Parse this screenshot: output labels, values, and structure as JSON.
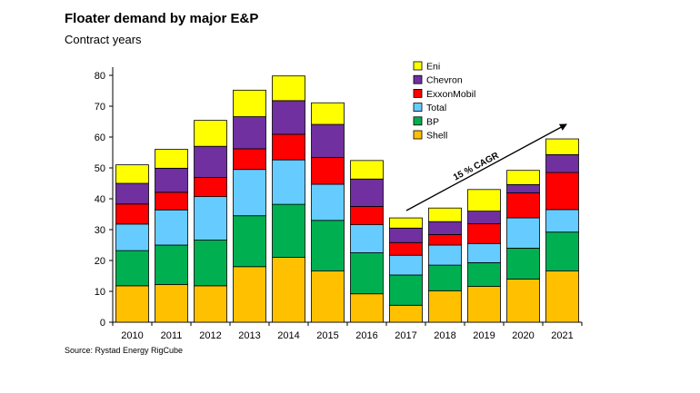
{
  "chart_data": {
    "type": "bar",
    "stacked": true,
    "title": "Floater demand by major E&P",
    "subtitle": "Contract years",
    "xlabel": "",
    "ylabel": "",
    "ylim": [
      0,
      85
    ],
    "yticks": [
      0,
      10,
      20,
      30,
      40,
      50,
      60,
      70,
      80
    ],
    "grid": false,
    "legend_position": "top-right",
    "categories": [
      "2010",
      "2011",
      "2012",
      "2013",
      "2014",
      "2015",
      "2016",
      "2017",
      "2018",
      "2019",
      "2020",
      "2021"
    ],
    "series": [
      {
        "name": "Shell",
        "color": "#FFC000",
        "values": [
          11.8,
          12.2,
          11.8,
          18.0,
          21.0,
          16.6,
          9.2,
          5.5,
          10.2,
          11.6,
          14.0,
          16.6
        ]
      },
      {
        "name": "BP",
        "color": "#00B050",
        "values": [
          11.4,
          12.8,
          14.8,
          16.5,
          17.2,
          16.4,
          13.3,
          9.8,
          8.3,
          7.7,
          10.0,
          12.6
        ]
      },
      {
        "name": "Total",
        "color": "#66CCFF",
        "values": [
          8.6,
          11.4,
          14.1,
          15.0,
          14.4,
          11.7,
          9.1,
          6.4,
          6.5,
          6.2,
          9.8,
          7.3
        ]
      },
      {
        "name": "ExxonMobil",
        "color": "#FF0000",
        "values": [
          6.5,
          5.7,
          6.2,
          6.7,
          8.3,
          8.7,
          5.9,
          4.1,
          3.4,
          6.4,
          8.1,
          12.0
        ]
      },
      {
        "name": "Chevron",
        "color": "#7030A0",
        "values": [
          6.7,
          7.8,
          10.1,
          10.4,
          10.9,
          10.7,
          8.9,
          4.7,
          4.2,
          4.1,
          2.7,
          5.8
        ]
      },
      {
        "name": "Eni",
        "color": "#FFFF00",
        "values": [
          6.0,
          6.1,
          8.4,
          8.6,
          8.0,
          7.0,
          6.0,
          3.3,
          4.4,
          7.0,
          4.6,
          5.1
        ]
      }
    ],
    "annotation": "15 % CAGR"
  },
  "source": "Source: Rystad Energy RigCube"
}
